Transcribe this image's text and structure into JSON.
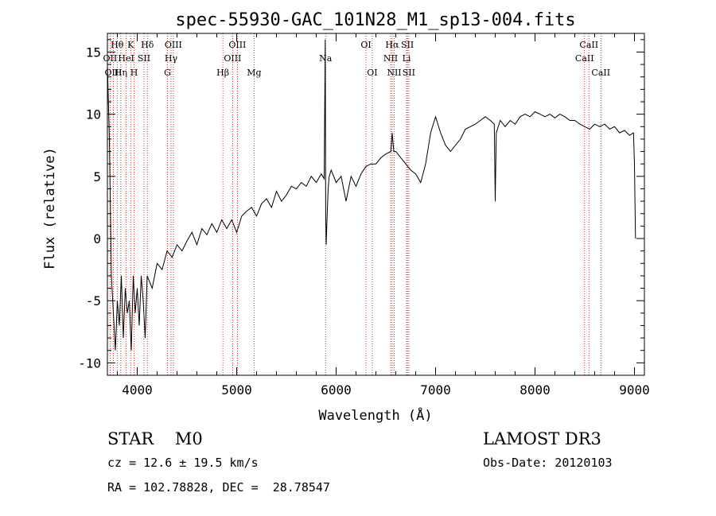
{
  "chart_data": {
    "type": "line",
    "title": "spec-55930-GAC_101N28_M1_sp13-004.fits",
    "xlabel": "Wavelength (Å)",
    "ylabel": "Flux (relative)",
    "xlim": [
      3700,
      9100
    ],
    "ylim": [
      -11,
      16.5
    ],
    "xticks": [
      4000,
      5000,
      6000,
      7000,
      8000,
      9000
    ],
    "yticks": [
      -10,
      -5,
      0,
      5,
      10,
      15
    ],
    "series": [
      {
        "name": "flux",
        "x": [
          3700,
          3720,
          3740,
          3760,
          3780,
          3800,
          3820,
          3840,
          3860,
          3880,
          3900,
          3920,
          3940,
          3960,
          3980,
          4000,
          4020,
          4040,
          4060,
          4080,
          4100,
          4150,
          4200,
          4250,
          4300,
          4350,
          4400,
          4450,
          4500,
          4550,
          4600,
          4650,
          4700,
          4750,
          4800,
          4850,
          4900,
          4950,
          5000,
          5050,
          5100,
          5150,
          5200,
          5250,
          5300,
          5350,
          5400,
          5450,
          5500,
          5550,
          5600,
          5650,
          5700,
          5750,
          5800,
          5850,
          5880,
          5890,
          5895,
          5900,
          5910,
          5920,
          5930,
          5950,
          6000,
          6050,
          6100,
          6150,
          6200,
          6250,
          6300,
          6350,
          6400,
          6450,
          6500,
          6550,
          6563,
          6580,
          6600,
          6650,
          6700,
          6750,
          6800,
          6850,
          6900,
          6950,
          7000,
          7050,
          7100,
          7150,
          7200,
          7250,
          7300,
          7350,
          7400,
          7450,
          7500,
          7550,
          7590,
          7600,
          7610,
          7650,
          7700,
          7750,
          7800,
          7850,
          7900,
          7950,
          8000,
          8050,
          8100,
          8150,
          8200,
          8250,
          8300,
          8350,
          8400,
          8450,
          8500,
          8550,
          8600,
          8650,
          8700,
          8750,
          8800,
          8850,
          8900,
          8950,
          8990,
          9000,
          9010
        ],
        "y": [
          14,
          8,
          -3,
          -6,
          -9,
          -5,
          -7,
          -3,
          -8,
          -4,
          -6,
          -5,
          -9,
          -3,
          -6,
          -4,
          -7,
          -3,
          -5,
          -8,
          -3,
          -4,
          -2,
          -2.5,
          -1,
          -1.5,
          -0.5,
          -1,
          -0.2,
          0.5,
          -0.5,
          0.8,
          0.3,
          1.2,
          0.5,
          1.5,
          0.8,
          1.5,
          0.5,
          1.8,
          2.2,
          2.5,
          1.8,
          2.8,
          3.2,
          2.5,
          3.8,
          3,
          3.5,
          4.2,
          4,
          4.5,
          4.2,
          5,
          4.5,
          5.2,
          4.8,
          16,
          2,
          -0.5,
          2,
          4,
          5,
          5.5,
          4.5,
          5,
          3,
          5,
          4.2,
          5.2,
          5.8,
          6,
          6,
          6.5,
          6.8,
          7,
          8.5,
          7,
          7,
          6.5,
          6,
          5.5,
          5.2,
          4.5,
          6,
          8.5,
          9.8,
          8.5,
          7.5,
          7,
          7.5,
          8,
          8.8,
          9,
          9.2,
          9.5,
          9.8,
          9.5,
          9.2,
          3,
          8.5,
          9.5,
          9,
          9.5,
          9.2,
          9.8,
          10,
          9.8,
          10.2,
          10,
          9.8,
          10,
          9.7,
          10,
          9.8,
          9.5,
          9.5,
          9.2,
          9,
          8.8,
          9.2,
          9,
          9.2,
          8.8,
          9,
          8.5,
          8.7,
          8.3,
          8.5,
          6,
          0
        ]
      }
    ],
    "lines": [
      {
        "label": "Hθ",
        "wl": 3798,
        "row": 1
      },
      {
        "label": "OII",
        "wl": 3727,
        "row": 2
      },
      {
        "label": "OIII",
        "wl": 3760,
        "row": 3
      },
      {
        "label": "K",
        "wl": 3934,
        "row": 1
      },
      {
        "label": "HeI",
        "wl": 3889,
        "row": 2
      },
      {
        "label": "Hη",
        "wl": 3835,
        "row": 3
      },
      {
        "label": "SII",
        "wl": 4068,
        "row": 2
      },
      {
        "label": "H",
        "wl": 3968,
        "row": 3
      },
      {
        "label": "Hδ",
        "wl": 4102,
        "row": 1
      },
      {
        "label": "OIII",
        "wl": 4363,
        "row": 1
      },
      {
        "label": "Hγ",
        "wl": 4340,
        "row": 2
      },
      {
        "label": "G",
        "wl": 4304,
        "row": 3
      },
      {
        "label": "Hβ",
        "wl": 4861,
        "row": 3
      },
      {
        "label": "OIII",
        "wl": 5007,
        "row": 1
      },
      {
        "label": "OIII",
        "wl": 4959,
        "row": 2
      },
      {
        "label": "Mg",
        "wl": 5175,
        "row": 3
      },
      {
        "label": "Na",
        "wl": 5894,
        "row": 2
      },
      {
        "label": "OI",
        "wl": 6300,
        "row": 1
      },
      {
        "label": "OI",
        "wl": 6363,
        "row": 3
      },
      {
        "label": "Hα",
        "wl": 6563,
        "row": 1
      },
      {
        "label": "SII",
        "wl": 6717,
        "row": 1
      },
      {
        "label": "NII",
        "wl": 6548,
        "row": 2
      },
      {
        "label": "Li",
        "wl": 6708,
        "row": 2
      },
      {
        "label": "NII",
        "wl": 6584,
        "row": 3
      },
      {
        "label": "SII",
        "wl": 6731,
        "row": 3
      },
      {
        "label": "CaII",
        "wl": 8542,
        "row": 1
      },
      {
        "label": "CaII",
        "wl": 8498,
        "row": 2
      },
      {
        "label": "CaII",
        "wl": 8662,
        "row": 3
      }
    ]
  },
  "info": {
    "classification": "STAR    M0",
    "survey": "LAMOST DR3",
    "cz": "cz = 12.6 ± 19.5 km/s",
    "obs_date": "Obs-Date: 20120103",
    "coords": "RA = 102.78828, DEC =  28.78547"
  }
}
